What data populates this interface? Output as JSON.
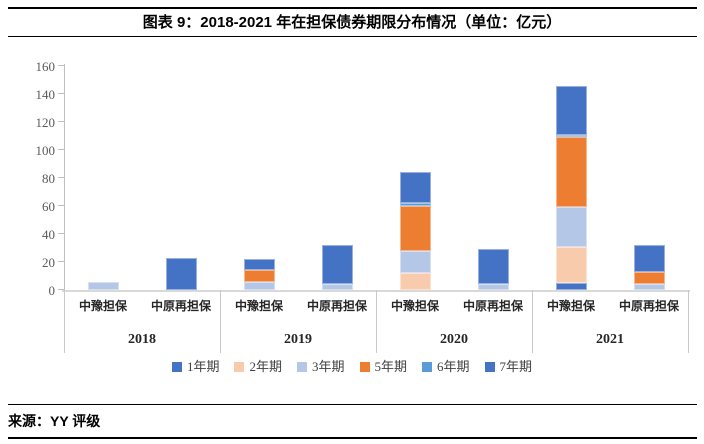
{
  "header": {
    "title": "图表 9：2018-2021 年在担保债券期限分布情况（单位：亿元）"
  },
  "footer": {
    "source": "来源：YY 评级"
  },
  "chart_data": {
    "type": "bar",
    "stacked": true,
    "title": "2018-2021 年在担保债券期限分布情况",
    "unit": "亿元",
    "gridlines": false,
    "legend_position": "bottom",
    "y_axis": {
      "min": 0,
      "max": 160,
      "step": 20,
      "ticks": [
        "0",
        "20",
        "40",
        "60",
        "80",
        "100",
        "120",
        "140",
        "160"
      ]
    },
    "group_labels": [
      "2018",
      "2019",
      "2020",
      "2021"
    ],
    "bar_categories": [
      "中豫担保",
      "中原再担保",
      "中豫担保",
      "中原再担保",
      "中豫担保",
      "中原再担保",
      "中豫担保",
      "中原再担保"
    ],
    "series": [
      {
        "name": "1年期",
        "color": "#4472C4",
        "values": [
          0,
          0,
          0,
          0,
          0,
          0,
          5,
          0
        ]
      },
      {
        "name": "2年期",
        "color": "#F8CBAD",
        "values": [
          0,
          0,
          0,
          0,
          12,
          0,
          26,
          0
        ]
      },
      {
        "name": "3年期",
        "color": "#B4C7E7",
        "values": [
          6,
          0,
          6,
          4,
          16,
          4,
          28,
          4
        ]
      },
      {
        "name": "5年期",
        "color": "#ED7D31",
        "values": [
          0,
          0,
          8,
          0,
          32,
          0,
          50,
          9
        ]
      },
      {
        "name": "6年期",
        "color": "#5B9BD5",
        "values": [
          0,
          0,
          0,
          0,
          2,
          0,
          2,
          0
        ]
      },
      {
        "name": "7年期",
        "color": "#4472C4",
        "values": [
          0,
          23,
          8,
          28,
          22,
          25,
          35,
          19
        ]
      }
    ],
    "bar_totals": [
      6,
      23,
      22,
      32,
      84,
      29,
      146,
      32
    ],
    "axis_color": "#BFBFBF",
    "separator_color": "#C9C9C9"
  }
}
